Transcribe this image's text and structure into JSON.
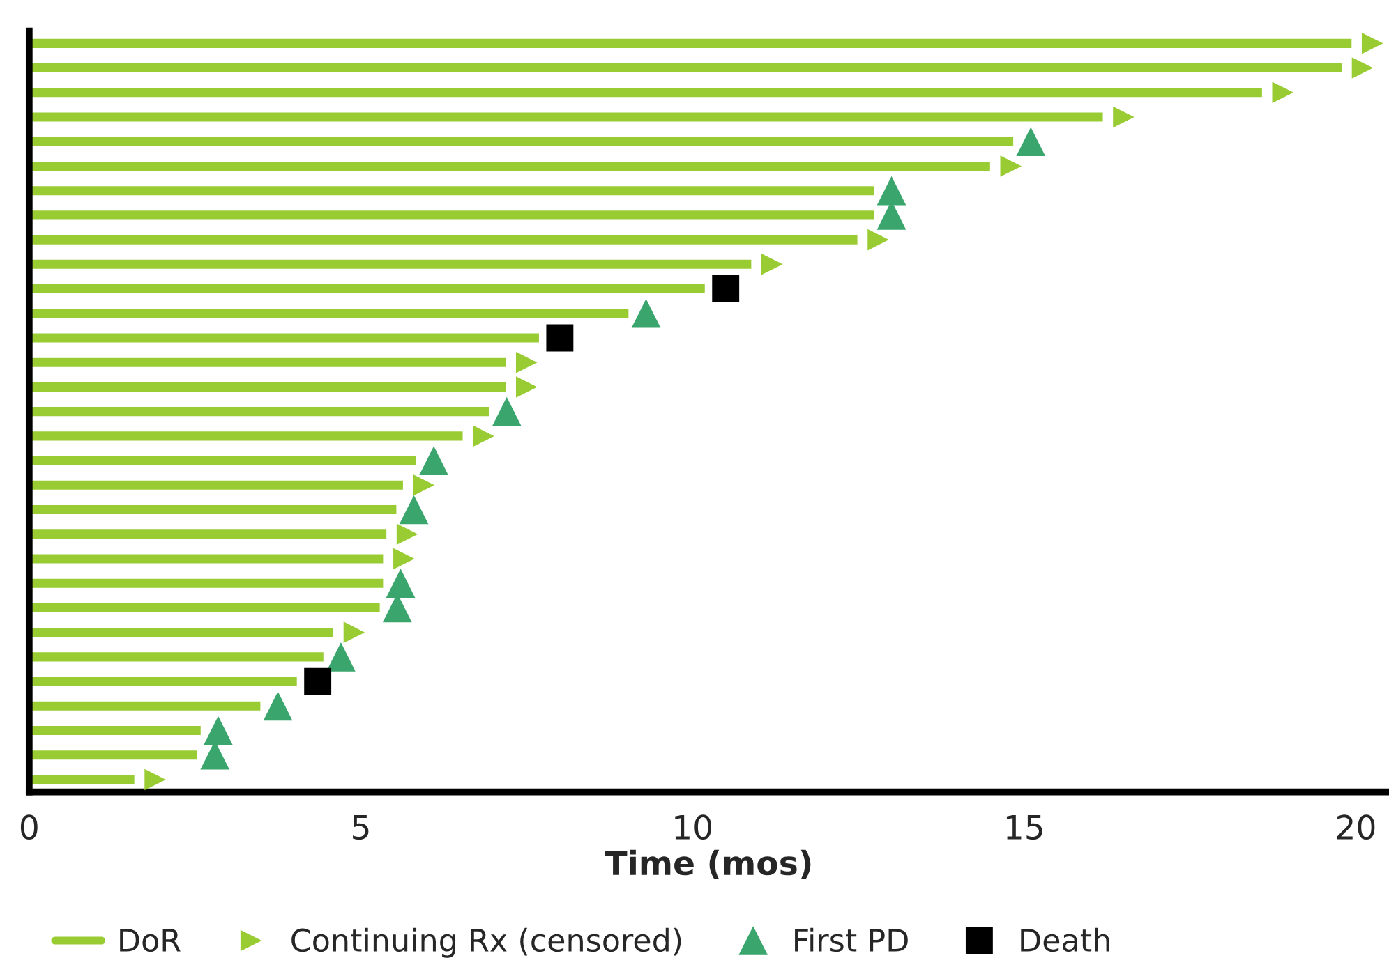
{
  "chart_data": {
    "type": "bar",
    "orientation": "horizontal",
    "xlabel": "Time (mos)",
    "xlim": [
      0,
      20.5
    ],
    "xticks": [
      0,
      5,
      10,
      15,
      20
    ],
    "tick_labels": "x",
    "grid": false,
    "legend": "bottom",
    "categories": [
      null,
      null,
      null,
      null,
      null,
      null,
      null,
      null,
      null,
      null,
      null,
      null,
      null,
      null,
      null,
      null,
      null,
      null,
      null,
      null,
      null,
      null,
      null,
      null,
      null,
      null,
      null,
      null,
      null,
      null,
      null
    ],
    "series": [
      {
        "name": "DoR",
        "color": "#99cc33",
        "values": [
          19.95,
          19.8,
          18.6,
          16.2,
          14.85,
          14.5,
          12.75,
          12.75,
          12.5,
          10.9,
          10.2,
          9.05,
          7.7,
          7.2,
          7.2,
          6.95,
          6.55,
          5.85,
          5.65,
          5.55,
          5.4,
          5.35,
          5.35,
          5.3,
          4.6,
          4.45,
          4.05,
          3.5,
          2.6,
          2.55,
          1.6
        ]
      },
      {
        "name": "Continuing Rx (censored)",
        "type": "scatter",
        "marker": "triangle_right",
        "color": "#99cc33",
        "values": [
          20.25,
          20.1,
          18.9,
          16.5,
          null,
          14.8,
          null,
          null,
          12.8,
          11.2,
          null,
          null,
          null,
          7.5,
          7.5,
          null,
          6.85,
          null,
          5.95,
          null,
          5.7,
          5.65,
          null,
          null,
          4.9,
          null,
          null,
          null,
          null,
          null,
          1.9
        ]
      },
      {
        "name": "First PD",
        "type": "scatter",
        "marker": "triangle",
        "color": "#3aa66e",
        "values": [
          null,
          null,
          null,
          null,
          15.1,
          null,
          13.0,
          13.0,
          null,
          null,
          null,
          9.3,
          null,
          null,
          null,
          7.2,
          null,
          6.1,
          null,
          5.8,
          null,
          null,
          5.6,
          5.55,
          null,
          4.7,
          null,
          3.75,
          2.85,
          2.8,
          null
        ]
      },
      {
        "name": "Death",
        "type": "scatter",
        "marker": "square",
        "color": "#000000",
        "values": [
          null,
          null,
          null,
          null,
          null,
          null,
          null,
          null,
          null,
          null,
          10.5,
          null,
          8.0,
          null,
          null,
          null,
          null,
          null,
          null,
          null,
          null,
          null,
          null,
          null,
          null,
          null,
          4.35,
          null,
          null,
          null,
          null
        ]
      }
    ]
  }
}
